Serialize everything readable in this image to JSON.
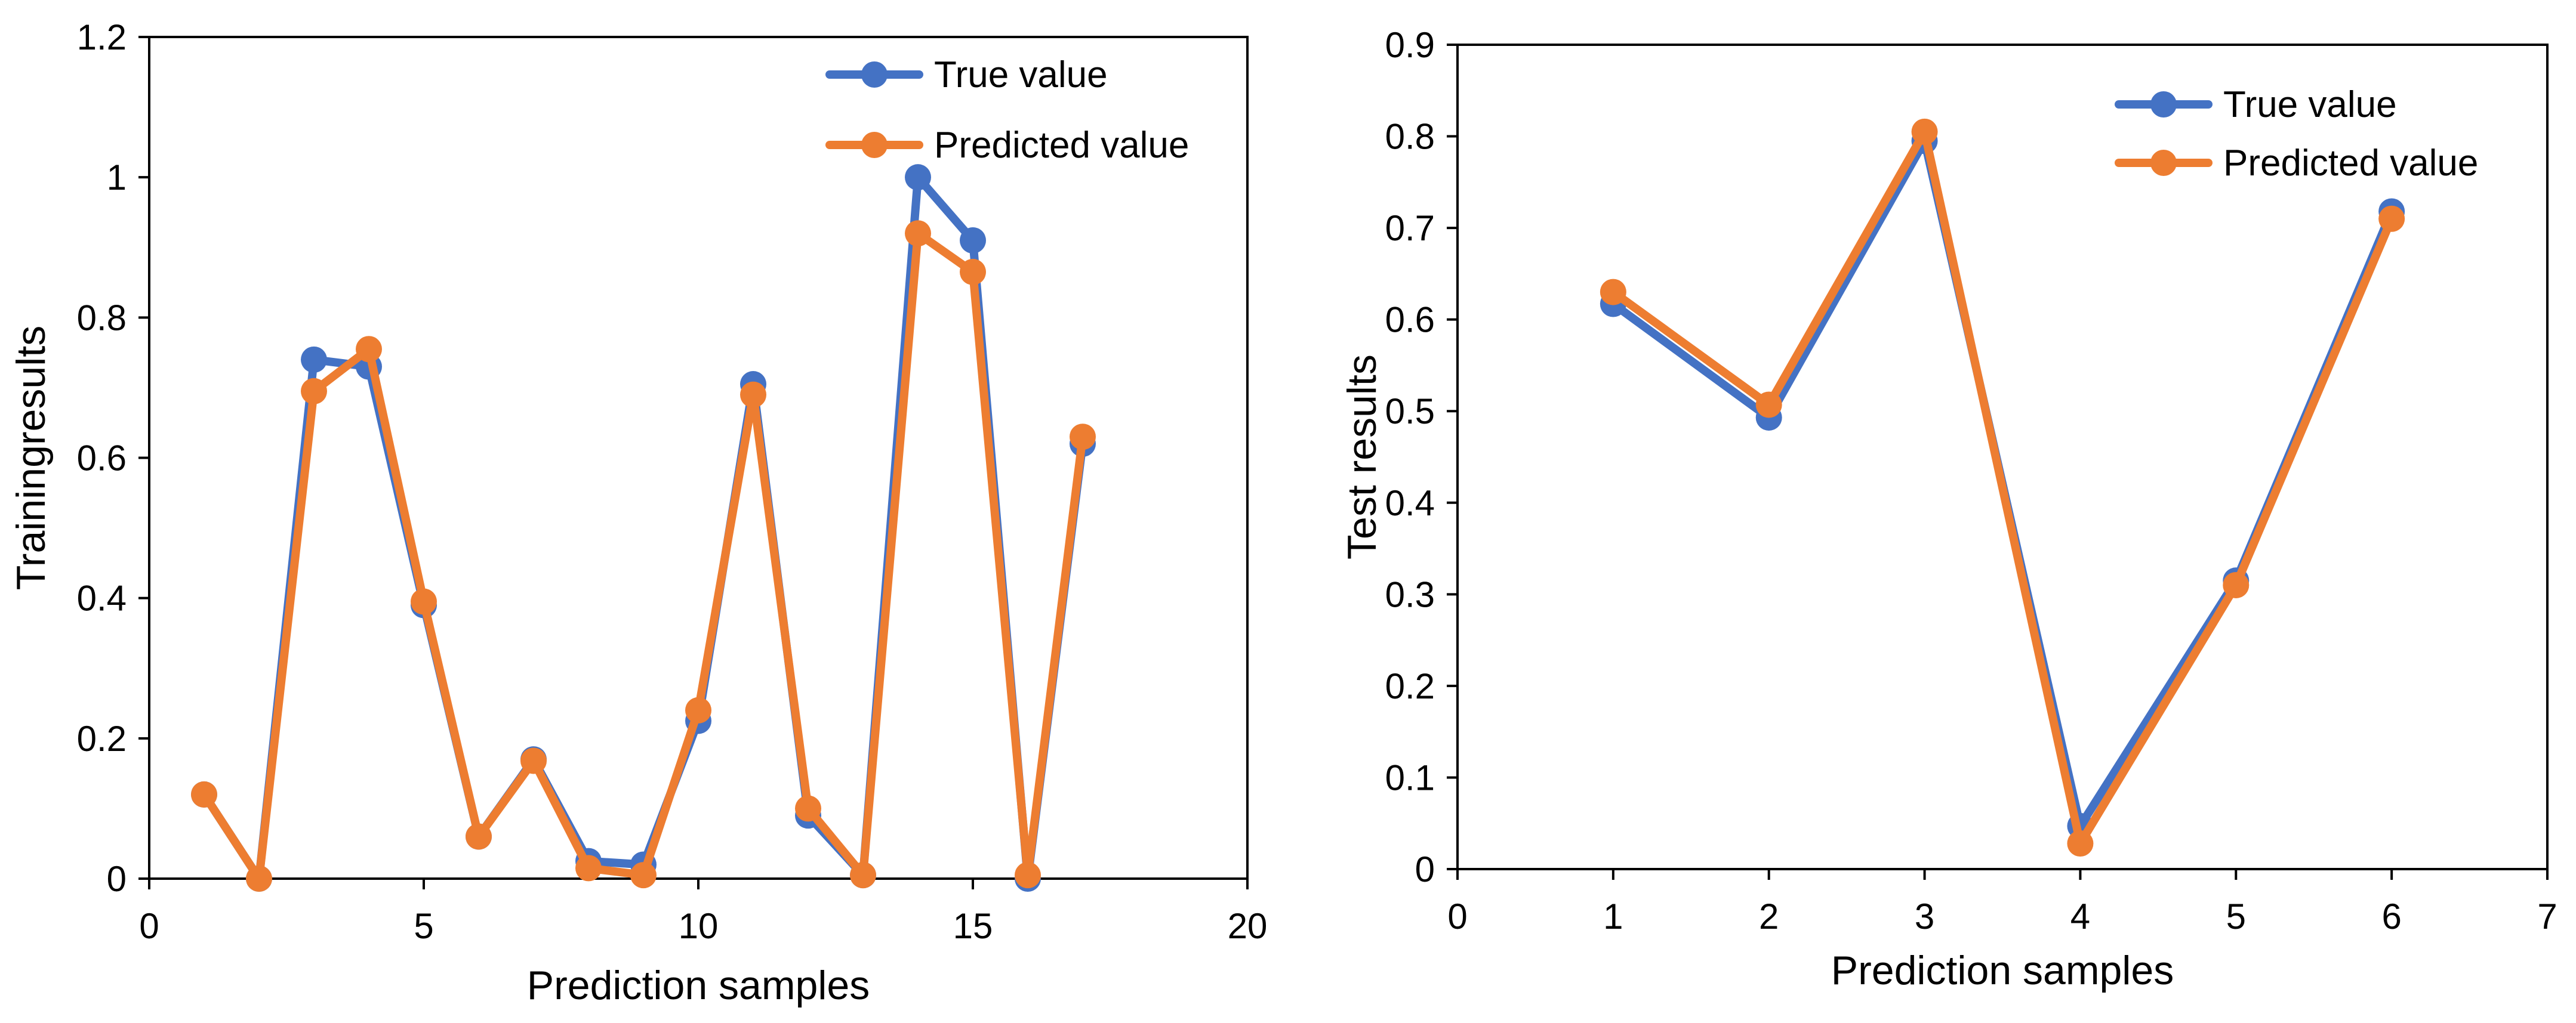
{
  "colors": {
    "true_series": "#4472C4",
    "predicted_series": "#ED7D31",
    "axis": "#000000",
    "background": "#FFFFFF"
  },
  "chart_data": [
    {
      "type": "line",
      "xlabel": "Prediction samples",
      "ylabel": "Trainingresults",
      "xlim": [
        0,
        20
      ],
      "ylim": [
        0,
        1.2
      ],
      "x_ticks": [
        0,
        5,
        10,
        15,
        20
      ],
      "x_tick_labels": [
        "0",
        "5",
        "10",
        "15",
        "20"
      ],
      "y_ticks": [
        0,
        0.2,
        0.4,
        0.6,
        0.8,
        1,
        1.2
      ],
      "y_tick_labels": [
        "0",
        "0.2",
        "0.4",
        "0.6",
        "0.8",
        "1",
        "1.2"
      ],
      "legend_position": "top-right",
      "series": [
        {
          "name": "True value",
          "x": [
            1,
            2,
            3,
            4,
            5,
            6,
            7,
            8,
            9,
            10,
            11,
            12,
            13,
            14,
            15,
            16,
            17
          ],
          "values": [
            0.12,
            0.0,
            0.74,
            0.73,
            0.39,
            0.06,
            0.17,
            0.025,
            0.02,
            0.225,
            0.705,
            0.09,
            0.005,
            1.0,
            0.91,
            0.0,
            0.62
          ]
        },
        {
          "name": "Predicted value",
          "x": [
            1,
            2,
            3,
            4,
            5,
            6,
            7,
            8,
            9,
            10,
            11,
            12,
            13,
            14,
            15,
            16,
            17
          ],
          "values": [
            0.12,
            0.0,
            0.695,
            0.755,
            0.395,
            0.06,
            0.168,
            0.015,
            0.005,
            0.24,
            0.69,
            0.1,
            0.005,
            0.92,
            0.865,
            0.005,
            0.63
          ]
        }
      ]
    },
    {
      "type": "line",
      "xlabel": "Prediction samples",
      "ylabel": "Test results",
      "xlim": [
        0,
        7
      ],
      "ylim": [
        0,
        0.9
      ],
      "x_ticks": [
        0,
        1,
        2,
        3,
        4,
        5,
        6,
        7
      ],
      "x_tick_labels": [
        "0",
        "1",
        "2",
        "3",
        "4",
        "5",
        "6",
        "7"
      ],
      "y_ticks": [
        0,
        0.1,
        0.2,
        0.3,
        0.4,
        0.5,
        0.6,
        0.7,
        0.8,
        0.9
      ],
      "y_tick_labels": [
        "0",
        "0.1",
        "0.2",
        "0.3",
        "0.4",
        "0.5",
        "0.6",
        "0.7",
        "0.8",
        "0.9"
      ],
      "legend_position": "top-right",
      "series": [
        {
          "name": "True value",
          "x": [
            1,
            2,
            3,
            4,
            5,
            6
          ],
          "values": [
            0.617,
            0.493,
            0.795,
            0.047,
            0.315,
            0.718
          ]
        },
        {
          "name": "Predicted value",
          "x": [
            1,
            2,
            3,
            4,
            5,
            6
          ],
          "values": [
            0.63,
            0.507,
            0.805,
            0.028,
            0.31,
            0.71
          ]
        }
      ]
    }
  ]
}
